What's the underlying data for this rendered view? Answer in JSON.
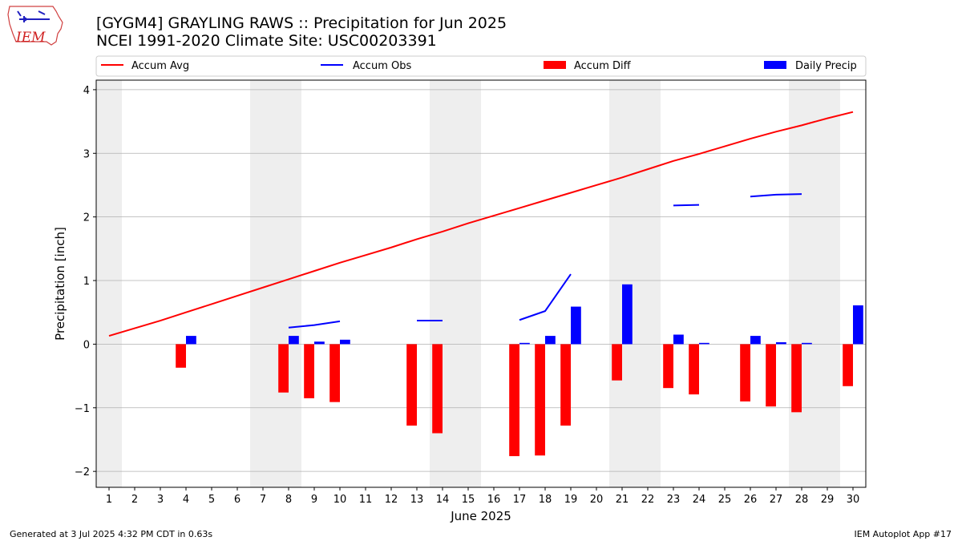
{
  "header": {
    "title": "[GYGM4] GRAYLING RAWS :: Precipitation for Jun 2025",
    "subtitle": "NCEI 1991-2020 Climate Site: USC00203391",
    "logo_text": "IEM"
  },
  "footer": {
    "generated": "Generated at 3 Jul 2025 4:32 PM CDT in 0.63s",
    "app": "IEM Autoplot App #17"
  },
  "colors": {
    "avg": "#ff0000",
    "obs": "#0000ff",
    "diff": "#ff0000",
    "daily": "#0000ff",
    "weekend": "#eeeeee",
    "grid": "#b0b0b0"
  },
  "chart_data": {
    "type": "bar",
    "xlabel": "June 2025",
    "ylabel": "Precipitation [inch]",
    "xlim": [
      0.5,
      30.5
    ],
    "ylim": [
      -2.25,
      4.15
    ],
    "yticks": [
      -2,
      -1,
      0,
      1,
      2,
      3,
      4
    ],
    "ytick_labels": [
      "−2",
      "−1",
      "0",
      "1",
      "2",
      "3",
      "4"
    ],
    "days": [
      1,
      2,
      3,
      4,
      5,
      6,
      7,
      8,
      9,
      10,
      11,
      12,
      13,
      14,
      15,
      16,
      17,
      18,
      19,
      20,
      21,
      22,
      23,
      24,
      25,
      26,
      27,
      28,
      29,
      30
    ],
    "weekend_days": [
      1,
      7,
      8,
      14,
      15,
      21,
      22,
      28,
      29
    ],
    "grid": true,
    "legend_placement": "top",
    "series": [
      {
        "name": "Accum Avg",
        "kind": "line",
        "values": [
          0.13,
          0.25,
          0.37,
          0.5,
          0.63,
          0.76,
          0.89,
          1.02,
          1.15,
          1.28,
          1.4,
          1.52,
          1.65,
          1.77,
          1.9,
          2.02,
          2.14,
          2.26,
          2.38,
          2.5,
          2.62,
          2.75,
          2.88,
          2.99,
          3.11,
          3.23,
          3.34,
          3.44,
          3.55,
          3.65
        ]
      },
      {
        "name": "Accum Obs",
        "kind": "line",
        "values": [
          null,
          null,
          null,
          null,
          null,
          null,
          null,
          0.26,
          0.3,
          0.36,
          null,
          null,
          0.37,
          0.37,
          null,
          null,
          0.38,
          0.52,
          1.1,
          null,
          null,
          null,
          2.18,
          2.19,
          null,
          2.32,
          2.35,
          2.36,
          null,
          null
        ]
      },
      {
        "name": "Accum Diff",
        "kind": "bar",
        "values": [
          null,
          null,
          null,
          -0.37,
          null,
          null,
          null,
          -0.76,
          -0.85,
          -0.91,
          null,
          null,
          -1.28,
          -1.4,
          null,
          null,
          -1.76,
          -1.75,
          -1.28,
          null,
          -0.57,
          null,
          -0.69,
          -0.79,
          null,
          -0.9,
          -0.98,
          -1.07,
          null,
          -0.66
        ]
      },
      {
        "name": "Daily Precip",
        "kind": "bar",
        "values": [
          0,
          0,
          0,
          0.13,
          0,
          0,
          0,
          0.13,
          0.04,
          0.07,
          0,
          0,
          0,
          0,
          0,
          0,
          0.02,
          0.13,
          0.59,
          0,
          0.94,
          0,
          0.15,
          0.02,
          0,
          0.13,
          0.03,
          0.02,
          0,
          0.61
        ]
      }
    ]
  }
}
